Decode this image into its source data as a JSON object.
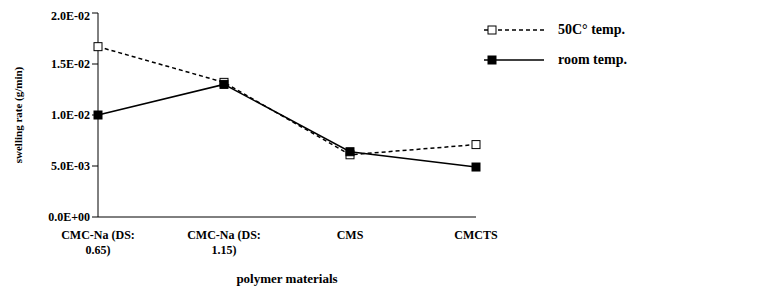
{
  "chart_data": {
    "type": "line",
    "categories": [
      "CMC-Na (DS: 0.65)",
      "CMC-Na (DS: 1.15)",
      "CMS",
      "CMCTS"
    ],
    "series": [
      {
        "name": "50C° temp.",
        "color": "#000000",
        "values": [
          0.0167,
          0.0132,
          0.0061,
          0.0071
        ],
        "marker": "square-open",
        "line_style": "dashed"
      },
      {
        "name": "room temp.",
        "color": "#000000",
        "values": [
          0.01,
          0.013,
          0.0064,
          0.0049
        ],
        "marker": "square",
        "line_style": "solid"
      }
    ],
    "x_label": "polymer materials",
    "y_label": "swelling rate (g/min)",
    "ylim": [
      0,
      0.02
    ],
    "yticks": [
      {
        "value": 0,
        "label": "0.0E+00"
      },
      {
        "value": 0.005,
        "label": "5.0E-03"
      },
      {
        "value": 0.01,
        "label": "1.0E-02"
      },
      {
        "value": 0.015,
        "label": "1.5E-02"
      },
      {
        "value": 0.02,
        "label": "2.0E-02"
      }
    ],
    "legend": "upper right",
    "grid": false
  }
}
